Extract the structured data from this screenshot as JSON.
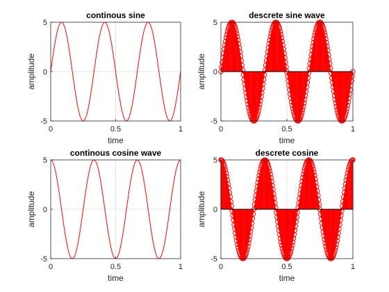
{
  "figure": {
    "background": "#ffffff",
    "line_color": "#ff0000",
    "grid_color": "#dcdcdc"
  },
  "chart_data": [
    {
      "type": "line",
      "title": "continous sine",
      "xlabel": "time",
      "ylabel": "amplitude",
      "xlim": [
        0,
        1
      ],
      "ylim": [
        -5,
        5
      ],
      "xticks": [
        0,
        0.5,
        1
      ],
      "yticks": [
        -5,
        0,
        5
      ],
      "grid": true,
      "function": {
        "kind": "sin",
        "amplitude": 5,
        "frequency_hz": 3
      },
      "series": [
        {
          "x": [
            0,
            0.025,
            0.05,
            0.075,
            0.1,
            0.125,
            0.15,
            0.175,
            0.2,
            0.225,
            0.25,
            0.275,
            0.3,
            0.325,
            0.35,
            0.375,
            0.4,
            0.425,
            0.45,
            0.475,
            0.5,
            0.525,
            0.55,
            0.575,
            0.6,
            0.625,
            0.65,
            0.675,
            0.7,
            0.725,
            0.75,
            0.775,
            0.8,
            0.825,
            0.85,
            0.875,
            0.9,
            0.925,
            0.95,
            0.975,
            1
          ],
          "y": [
            0,
            2.27,
            4.05,
            4.94,
            4.76,
            3.54,
            1.56,
            -0.78,
            -2.94,
            -4.46,
            -5.0,
            -4.46,
            -2.94,
            -0.78,
            1.56,
            3.54,
            4.76,
            4.94,
            4.05,
            2.27,
            0,
            -2.27,
            -4.05,
            -4.94,
            -4.76,
            -3.54,
            -1.56,
            0.78,
            2.94,
            4.46,
            5.0,
            4.46,
            2.94,
            0.78,
            -1.56,
            -3.54,
            -4.76,
            -4.94,
            -4.05,
            -2.27,
            0
          ]
        }
      ]
    },
    {
      "type": "stem",
      "title": "descrete sine wave",
      "xlabel": "time",
      "ylabel": "amplitude",
      "xlim": [
        0,
        1
      ],
      "ylim": [
        -5,
        5
      ],
      "xticks": [
        0,
        0.5,
        1
      ],
      "yticks": [
        -5,
        0,
        5
      ],
      "grid": true,
      "function": {
        "kind": "sin",
        "amplitude": 5,
        "frequency_hz": 3
      },
      "series": [
        {
          "x": [
            0,
            0.025,
            0.05,
            0.075,
            0.1,
            0.125,
            0.15,
            0.175,
            0.2,
            0.225,
            0.25,
            0.275,
            0.3,
            0.325,
            0.35,
            0.375,
            0.4,
            0.425,
            0.45,
            0.475,
            0.5,
            0.525,
            0.55,
            0.575,
            0.6,
            0.625,
            0.65,
            0.675,
            0.7,
            0.725,
            0.75,
            0.775,
            0.8,
            0.825,
            0.85,
            0.875,
            0.9,
            0.925,
            0.95,
            0.975,
            1
          ],
          "y": [
            0,
            2.27,
            4.05,
            4.94,
            4.76,
            3.54,
            1.56,
            -0.78,
            -2.94,
            -4.46,
            -5.0,
            -4.46,
            -2.94,
            -0.78,
            1.56,
            3.54,
            4.76,
            4.94,
            4.05,
            2.27,
            0,
            -2.27,
            -4.05,
            -4.94,
            -4.76,
            -3.54,
            -1.56,
            0.78,
            2.94,
            4.46,
            5.0,
            4.46,
            2.94,
            0.78,
            -1.56,
            -3.54,
            -4.76,
            -4.94,
            -4.05,
            -2.27,
            0
          ]
        }
      ]
    },
    {
      "type": "line",
      "title": "continous cosine wave",
      "xlabel": "time",
      "ylabel": "amplitude",
      "xlim": [
        0,
        1
      ],
      "ylim": [
        -5,
        5
      ],
      "xticks": [
        0,
        0.5,
        1
      ],
      "yticks": [
        -5,
        0,
        5
      ],
      "grid": true,
      "function": {
        "kind": "cos",
        "amplitude": 5,
        "frequency_hz": 3
      },
      "series": [
        {
          "x": [
            0,
            0.025,
            0.05,
            0.075,
            0.1,
            0.125,
            0.15,
            0.175,
            0.2,
            0.225,
            0.25,
            0.275,
            0.3,
            0.325,
            0.35,
            0.375,
            0.4,
            0.425,
            0.45,
            0.475,
            0.5,
            0.525,
            0.55,
            0.575,
            0.6,
            0.625,
            0.65,
            0.675,
            0.7,
            0.725,
            0.75,
            0.775,
            0.8,
            0.825,
            0.85,
            0.875,
            0.9,
            0.925,
            0.95,
            0.975,
            1
          ],
          "y": [
            5.0,
            4.46,
            2.94,
            0.78,
            -1.55,
            -3.54,
            -4.76,
            -4.94,
            -4.05,
            -2.27,
            0,
            2.27,
            4.05,
            4.94,
            4.76,
            3.54,
            1.55,
            -0.78,
            -2.94,
            -4.46,
            -5.0,
            -4.46,
            -2.94,
            -0.78,
            1.55,
            3.54,
            4.76,
            4.94,
            4.05,
            2.27,
            0,
            -2.27,
            -4.05,
            -4.94,
            -4.76,
            -3.54,
            -1.55,
            0.78,
            2.94,
            4.46,
            5.0
          ]
        }
      ]
    },
    {
      "type": "stem",
      "title": "descrete cosine",
      "xlabel": "time",
      "ylabel": "amplitude",
      "xlim": [
        0,
        1
      ],
      "ylim": [
        -5,
        5
      ],
      "xticks": [
        0,
        0.5,
        1
      ],
      "yticks": [
        -5,
        0,
        5
      ],
      "grid": true,
      "function": {
        "kind": "cos",
        "amplitude": 5,
        "frequency_hz": 3
      },
      "series": [
        {
          "x": [
            0,
            0.025,
            0.05,
            0.075,
            0.1,
            0.125,
            0.15,
            0.175,
            0.2,
            0.225,
            0.25,
            0.275,
            0.3,
            0.325,
            0.35,
            0.375,
            0.4,
            0.425,
            0.45,
            0.475,
            0.5,
            0.525,
            0.55,
            0.575,
            0.6,
            0.625,
            0.65,
            0.675,
            0.7,
            0.725,
            0.75,
            0.775,
            0.8,
            0.825,
            0.85,
            0.875,
            0.9,
            0.925,
            0.95,
            0.975,
            1
          ],
          "y": [
            5.0,
            4.46,
            2.94,
            0.78,
            -1.55,
            -3.54,
            -4.76,
            -4.94,
            -4.05,
            -2.27,
            0,
            2.27,
            4.05,
            4.94,
            4.76,
            3.54,
            1.55,
            -0.78,
            -2.94,
            -4.46,
            -5.0,
            -4.46,
            -2.94,
            -0.78,
            1.55,
            3.54,
            4.76,
            4.94,
            4.05,
            2.27,
            0,
            -2.27,
            -4.05,
            -4.94,
            -4.76,
            -3.54,
            -1.55,
            0.78,
            2.94,
            4.46,
            5.0
          ]
        }
      ]
    }
  ]
}
